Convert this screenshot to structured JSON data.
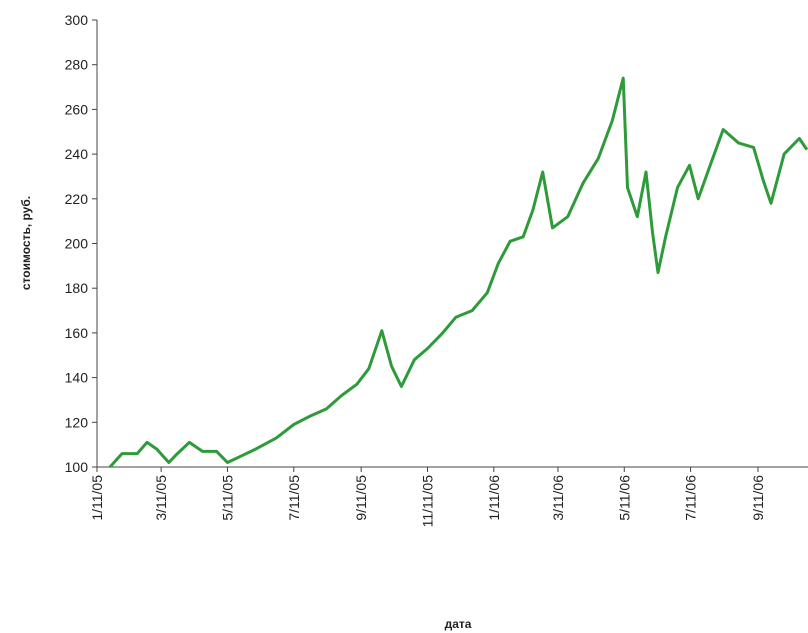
{
  "chart_data": {
    "type": "line",
    "ylabel": "стоимость, руб.",
    "xlabel": "дата",
    "xlim": [
      "1/11/05",
      "10/27/06"
    ],
    "xticks": [
      "1/11/05",
      "3/11/05",
      "5/11/05",
      "7/11/05",
      "9/11/05",
      "11/11/05",
      "1/11/06",
      "3/11/06",
      "5/11/06",
      "7/11/06",
      "9/11/06"
    ],
    "ylim": [
      100,
      300
    ],
    "yticks": [
      100,
      120,
      140,
      160,
      180,
      200,
      220,
      240,
      260,
      280,
      300
    ],
    "x": [
      "1/23/05",
      "2/3/05",
      "2/17/05",
      "2/26/05",
      "3/7/05",
      "3/18/05",
      "3/26/05",
      "4/6/05",
      "4/18/05",
      "5/1/05",
      "5/11/05",
      "5/24/05",
      "6/6/05",
      "6/25/05",
      "7/11/05",
      "7/27/05",
      "8/10/05",
      "8/24/05",
      "9/7/05",
      "9/18/05",
      "9/30/05",
      "10/9/05",
      "10/18/05",
      "10/30/05",
      "11/11/05",
      "11/25/05",
      "12/7/05",
      "12/22/05",
      "1/5/06",
      "1/15/06",
      "1/26/06",
      "2/7/06",
      "2/16/06",
      "2/25/06",
      "3/6/06",
      "3/20/06",
      "4/3/06",
      "4/17/06",
      "4/30/06",
      "5/10/06",
      "5/14/06",
      "5/23/06",
      "5/31/06",
      "6/6/06",
      "6/11/06",
      "6/18/06",
      "6/29/06",
      "7/10/06",
      "7/18/06",
      "7/29/06",
      "8/10/06",
      "8/24/06",
      "9/7/06",
      "9/16/06",
      "9/23/06",
      "10/5/06",
      "10/19/06",
      "10/26/06"
    ],
    "series": [
      {
        "color": "#2e9b3a",
        "values": [
          100,
          106,
          106,
          111,
          108,
          102,
          106,
          111,
          107,
          107,
          102,
          105,
          108,
          113,
          119,
          123,
          126,
          132,
          137,
          144,
          161,
          145,
          136,
          148,
          153,
          160,
          167,
          170,
          178,
          191,
          201,
          203,
          215,
          232,
          207,
          212,
          227,
          238,
          255,
          274,
          225,
          212,
          232,
          205,
          187,
          203,
          225,
          235,
          220,
          235,
          251,
          245,
          243,
          228,
          218,
          240,
          247,
          242
        ]
      }
    ]
  }
}
